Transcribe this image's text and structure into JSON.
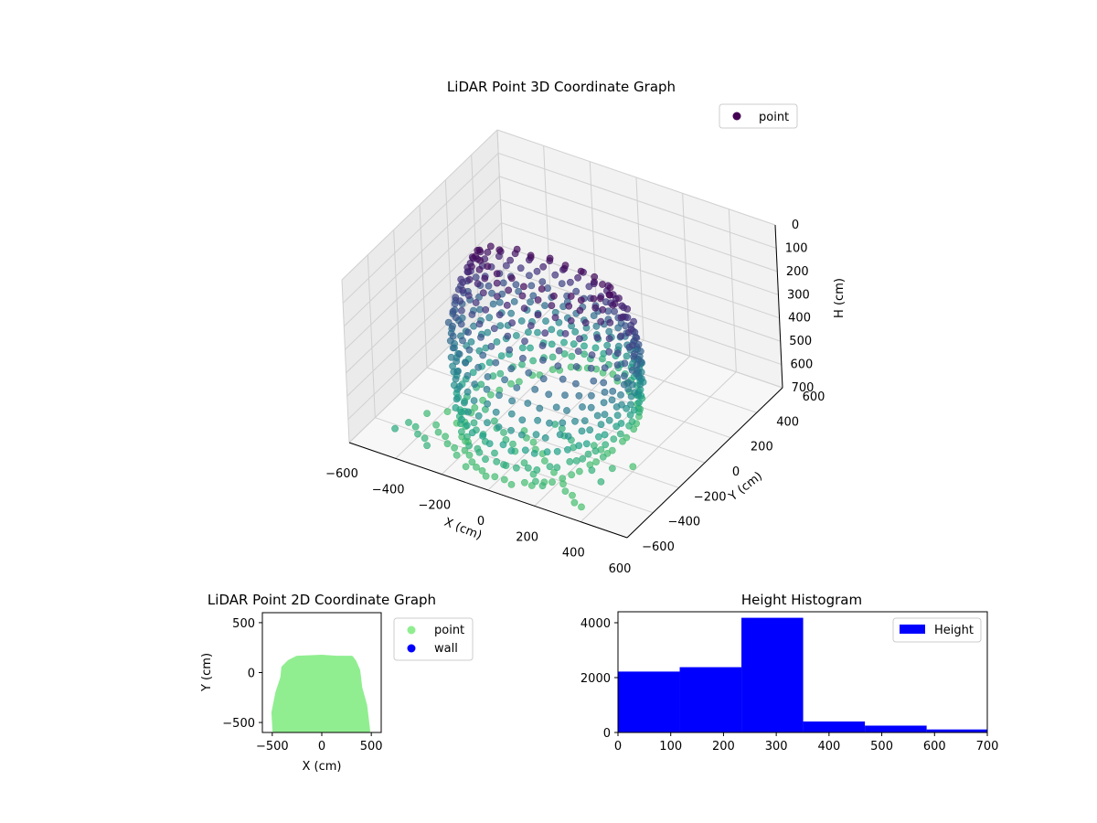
{
  "chart_data": [
    {
      "type": "scatter",
      "title": "LiDAR Point 3D Coordinate Graph",
      "xlabel": "X (cm)",
      "ylabel": "Y (cm)",
      "zlabel": "H (cm)",
      "xlim": [
        -600,
        600
      ],
      "ylim": [
        -600,
        600
      ],
      "zlim": [
        0,
        700
      ],
      "z_inverted": true,
      "x_ticks": [
        "−600",
        "−400",
        "−200",
        "0",
        "200",
        "400",
        "600"
      ],
      "y_ticks": [
        "−600",
        "−400",
        "−200",
        "0",
        "200",
        "400",
        "600"
      ],
      "z_ticks": [
        "0",
        "100",
        "200",
        "300",
        "400",
        "500",
        "600",
        "700"
      ],
      "grid": true,
      "legend": {
        "position": "top-right",
        "entries": [
          {
            "label": "point",
            "color": "#440154"
          }
        ]
      },
      "colormap": "viridis",
      "colormap_stops": [
        "#440154",
        "#46327e",
        "#365c8d",
        "#277f8e",
        "#1fa187",
        "#4ac16d"
      ],
      "series": [
        {
          "name": "point",
          "description_rings": [
            {
              "h": 30,
              "rx": 330,
              "ry": 120
            },
            {
              "h": 60,
              "rx": 360,
              "ry": 150
            },
            {
              "h": 100,
              "rx": 390,
              "ry": 180
            },
            {
              "h": 150,
              "rx": 420,
              "ry": 210
            },
            {
              "h": 200,
              "rx": 440,
              "ry": 240
            },
            {
              "h": 250,
              "rx": 450,
              "ry": 270
            },
            {
              "h": 300,
              "rx": 460,
              "ry": 300
            },
            {
              "h": 350,
              "rx": 450,
              "ry": 330
            },
            {
              "h": 400,
              "rx": 430,
              "ry": 360
            },
            {
              "h": 450,
              "rx": 420,
              "ry": 390
            },
            {
              "h": 500,
              "rx": 400,
              "ry": 420
            },
            {
              "h": 560,
              "rx": 380,
              "ry": 450
            },
            {
              "h": 620,
              "rx": 360,
              "ry": 480
            },
            {
              "h": 680,
              "rx": 340,
              "ry": 500
            }
          ]
        }
      ]
    },
    {
      "type": "scatter",
      "title": "LiDAR Point 2D Coordinate Graph",
      "xlabel": "X (cm)",
      "ylabel": "Y (cm)",
      "xlim": [
        -600,
        600
      ],
      "ylim": [
        -600,
        600
      ],
      "x_ticks": [
        "−500",
        "0",
        "500"
      ],
      "y_ticks": [
        "−500",
        "0",
        "500"
      ],
      "legend": {
        "position": "outside-right",
        "entries": [
          {
            "label": "point",
            "color": "#90ee90"
          },
          {
            "label": "wall",
            "color": "#0000ff"
          }
        ]
      },
      "series": [
        {
          "name": "point",
          "color": "#90ee90",
          "region_outline": [
            [
              -480,
              -580
            ],
            [
              -490,
              -400
            ],
            [
              -450,
              -200
            ],
            [
              -400,
              -50
            ],
            [
              -390,
              50
            ],
            [
              -330,
              110
            ],
            [
              -250,
              150
            ],
            [
              0,
              160
            ],
            [
              150,
              150
            ],
            [
              300,
              150
            ],
            [
              330,
              110
            ],
            [
              370,
              20
            ],
            [
              390,
              -150
            ],
            [
              440,
              -330
            ],
            [
              470,
              -580
            ]
          ]
        },
        {
          "name": "wall",
          "color": "#0000ff",
          "values": []
        }
      ]
    },
    {
      "type": "bar",
      "title": "Height Histogram",
      "xlim": [
        0,
        700
      ],
      "ylim": [
        0,
        4400
      ],
      "x_ticks": [
        "0",
        "100",
        "200",
        "300",
        "400",
        "500",
        "600",
        "700"
      ],
      "y_ticks": [
        "0",
        "2000",
        "4000"
      ],
      "legend": {
        "position": "top-right",
        "entries": [
          {
            "label": "Height",
            "color": "#0000ff"
          }
        ]
      },
      "bins": [
        {
          "start": 0,
          "end": 117,
          "count": 2220
        },
        {
          "start": 117,
          "end": 234,
          "count": 2380
        },
        {
          "start": 234,
          "end": 351,
          "count": 4180
        },
        {
          "start": 351,
          "end": 468,
          "count": 400
        },
        {
          "start": 468,
          "end": 585,
          "count": 250
        },
        {
          "start": 585,
          "end": 700,
          "count": 110
        }
      ],
      "color": "#0000ff"
    }
  ]
}
